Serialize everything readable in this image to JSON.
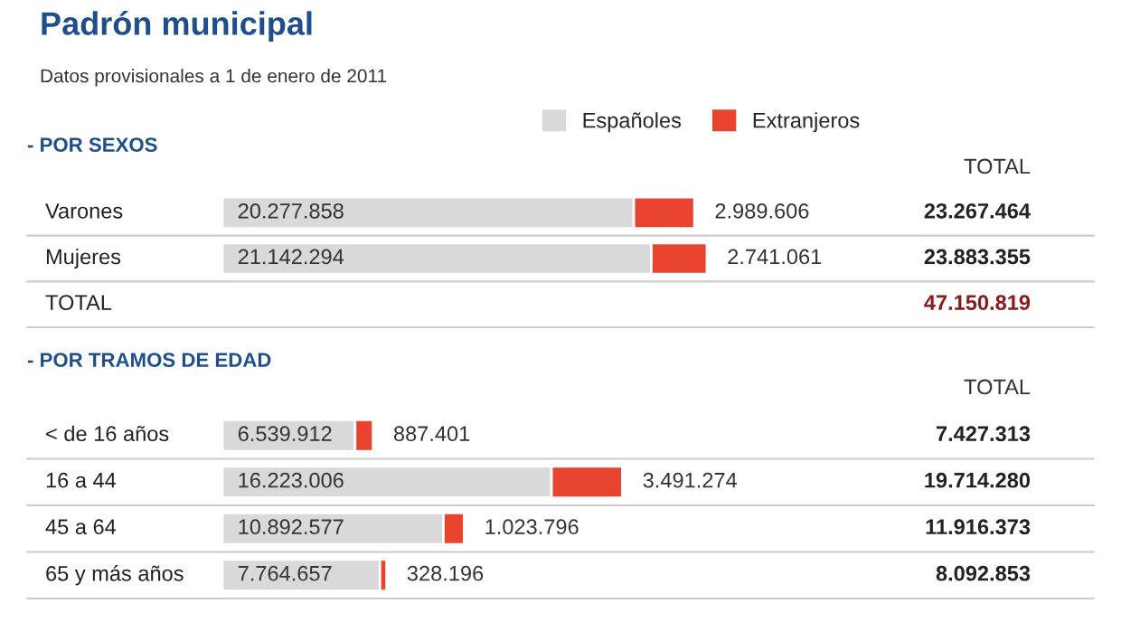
{
  "chart_data": [
    {
      "type": "other",
      "title": "Padrón municipal",
      "subtitle": "Datos provisionales a 1 de enero de 2011"
    },
    {
      "type": "bar",
      "orientation": "horizontal",
      "stacked": true,
      "title": "- POR SEXOS",
      "legend": "top",
      "grid": "y",
      "categories": [
        "Varones",
        "Mujeres"
      ],
      "series": [
        {
          "name": "Españoles",
          "color": "#d9d9d9",
          "values": [
            20277858,
            21142294
          ],
          "value_labels": [
            "20.277.858",
            "21.142.294"
          ]
        },
        {
          "name": "Extranjeros",
          "color": "#e8432e",
          "values": [
            2989606,
            2741061
          ],
          "value_labels": [
            "2.989.606",
            "2.741.061"
          ]
        }
      ],
      "annotations": [
        "TOTAL",
        "23.267.464",
        "23.883.355",
        "TOTAL",
        "47.150.819"
      ]
    },
    {
      "type": "bar",
      "orientation": "horizontal",
      "stacked": true,
      "title": "- POR TRAMOS DE EDAD",
      "grid": "y",
      "categories": [
        "< de 16 años",
        "16 a 44",
        "45 a 64",
        "65 y más años"
      ],
      "series": [
        {
          "color": "#d9d9d9",
          "values": [
            6539912,
            16223006,
            10892577,
            7764657
          ],
          "value_labels": [
            "6.539.912",
            "16.223.006",
            "10.892.577",
            "7.764.657"
          ]
        },
        {
          "color": "#e8432e",
          "values": [
            887401,
            3491274,
            1023796,
            328196
          ],
          "value_labels": [
            "887.401",
            "3.491.274",
            "1.023.796",
            "328.196"
          ]
        }
      ],
      "annotations": [
        "TOTAL",
        "7.427.313",
        "19.714.280",
        "11.916.373",
        "8.092.853"
      ]
    }
  ]
}
